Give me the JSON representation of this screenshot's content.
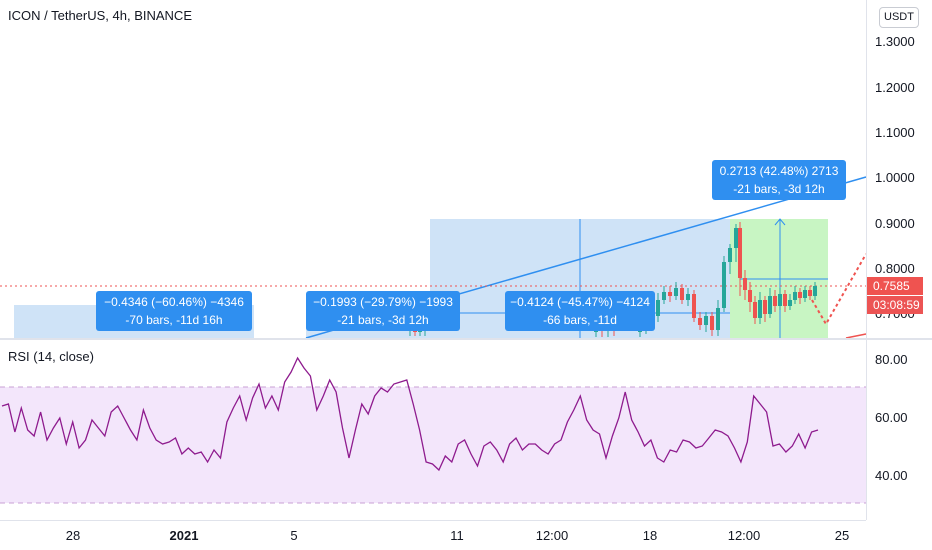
{
  "header": {
    "symbol_title": "ICON / TetherUS, 4h, BINANCE",
    "currency_button": "USDT"
  },
  "price_axis": {
    "ticks": [
      "1.3000",
      "1.2000",
      "1.1000",
      "1.0000",
      "0.9000",
      "0.8000",
      "0.7000"
    ],
    "last_price": "0.7585",
    "countdown": "03:08:59"
  },
  "rsi_pane": {
    "title": "RSI (14, close)",
    "ticks": [
      "80.00",
      "60.00",
      "40.00"
    ]
  },
  "time_axis": {
    "ticks": [
      "28",
      "2021",
      "5",
      "11",
      "12:00",
      "18",
      "12:00",
      "25"
    ]
  },
  "measurements": [
    {
      "line1": "−0.4346 (−60.46%) −4346",
      "line2": "-70 bars, -11d 16h"
    },
    {
      "line1": "−0.1993 (−29.79%) −1993",
      "line2": "-21 bars, -3d 12h"
    },
    {
      "line1": "−0.4124 (−45.47%) −4124",
      "line2": "-66 bars, -11d"
    },
    {
      "line1": "0.2713 (42.48%) 2713",
      "line2": "-21 bars, -3d 12h"
    }
  ],
  "colors": {
    "up_candle": "#26a69a",
    "down_candle": "#ef5350",
    "measure_blue": "#2f8ff0",
    "zone_blue": "#cfe3f7",
    "zone_green": "#c8f5c3",
    "rsi_line": "#8e1b8e",
    "rsi_band": "#f3e6fb"
  },
  "icons": [
    "price-dotted-line",
    "trend-line",
    "forecast-dotted-line"
  ]
}
